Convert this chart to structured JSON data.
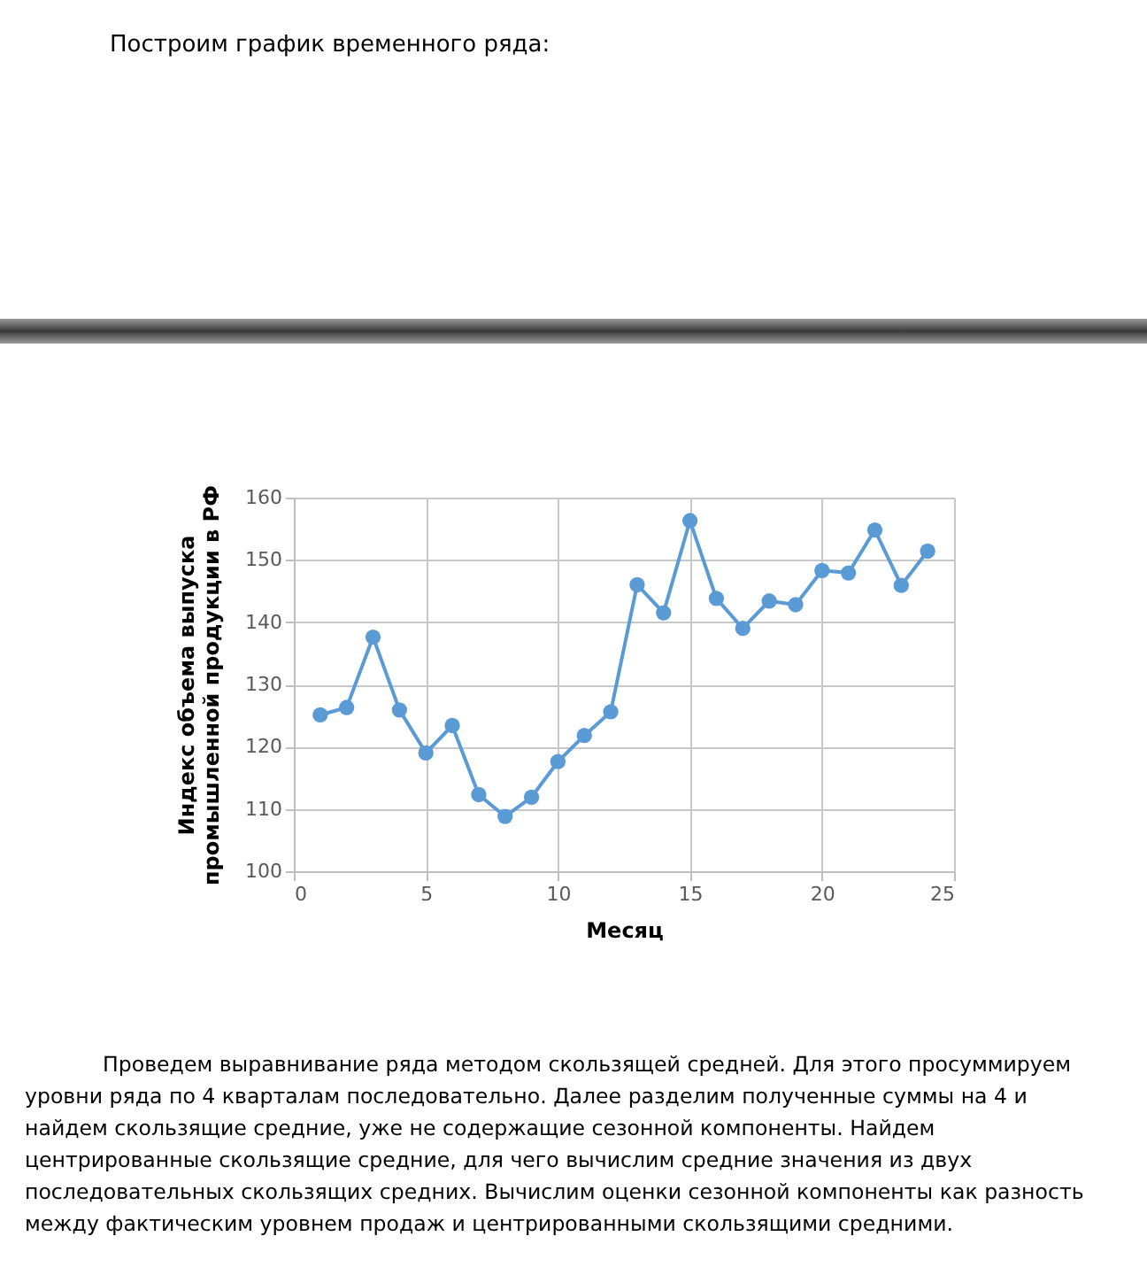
{
  "chart_data": {
    "type": "line",
    "title": "Построим график временного ряда:",
    "xlabel": "Месяц",
    "ylabel": "Индекс объема выпуска\nпромышленной продукции в РФ",
    "x": [
      1,
      2,
      3,
      4,
      5,
      6,
      7,
      8,
      9,
      10,
      11,
      12,
      13,
      14,
      15,
      16,
      17,
      18,
      19,
      20,
      21,
      22,
      23,
      24
    ],
    "series": [
      {
        "color": "#5b9bd5",
        "values": [
          125.1,
          126.3,
          137.6,
          125.9,
          119.0,
          123.4,
          112.3,
          108.8,
          111.9,
          117.6,
          121.8,
          125.6,
          146.0,
          141.5,
          156.3,
          143.8,
          139.0,
          143.4,
          142.8,
          148.3,
          147.9,
          154.8,
          145.9,
          151.4
        ]
      }
    ],
    "xlim": [
      0,
      25
    ],
    "xticks": [
      0,
      5,
      10,
      15,
      20,
      25
    ],
    "ylim": [
      100,
      160
    ],
    "yticks": [
      100,
      110,
      120,
      130,
      140,
      150,
      160
    ],
    "grid": true,
    "marker": "circle",
    "line_style": "solid",
    "annotations": [
      "Проведем выравнивание ряда методом скользящей средней. Для этого просуммируем уровни ряда по 4 кварталам последовательно. Далее разделим полученные суммы на 4 и найдем скользящие средние, уже не содержащие сезонной компоненты. Найдем центрированные скользящие средние, для чего вычислим средние значения из двух последовательных скользящих средних. Вычислим оценки сезонной компоненты как разность между фактическим уровнем продаж и центрированными скользящими средними."
    ]
  }
}
